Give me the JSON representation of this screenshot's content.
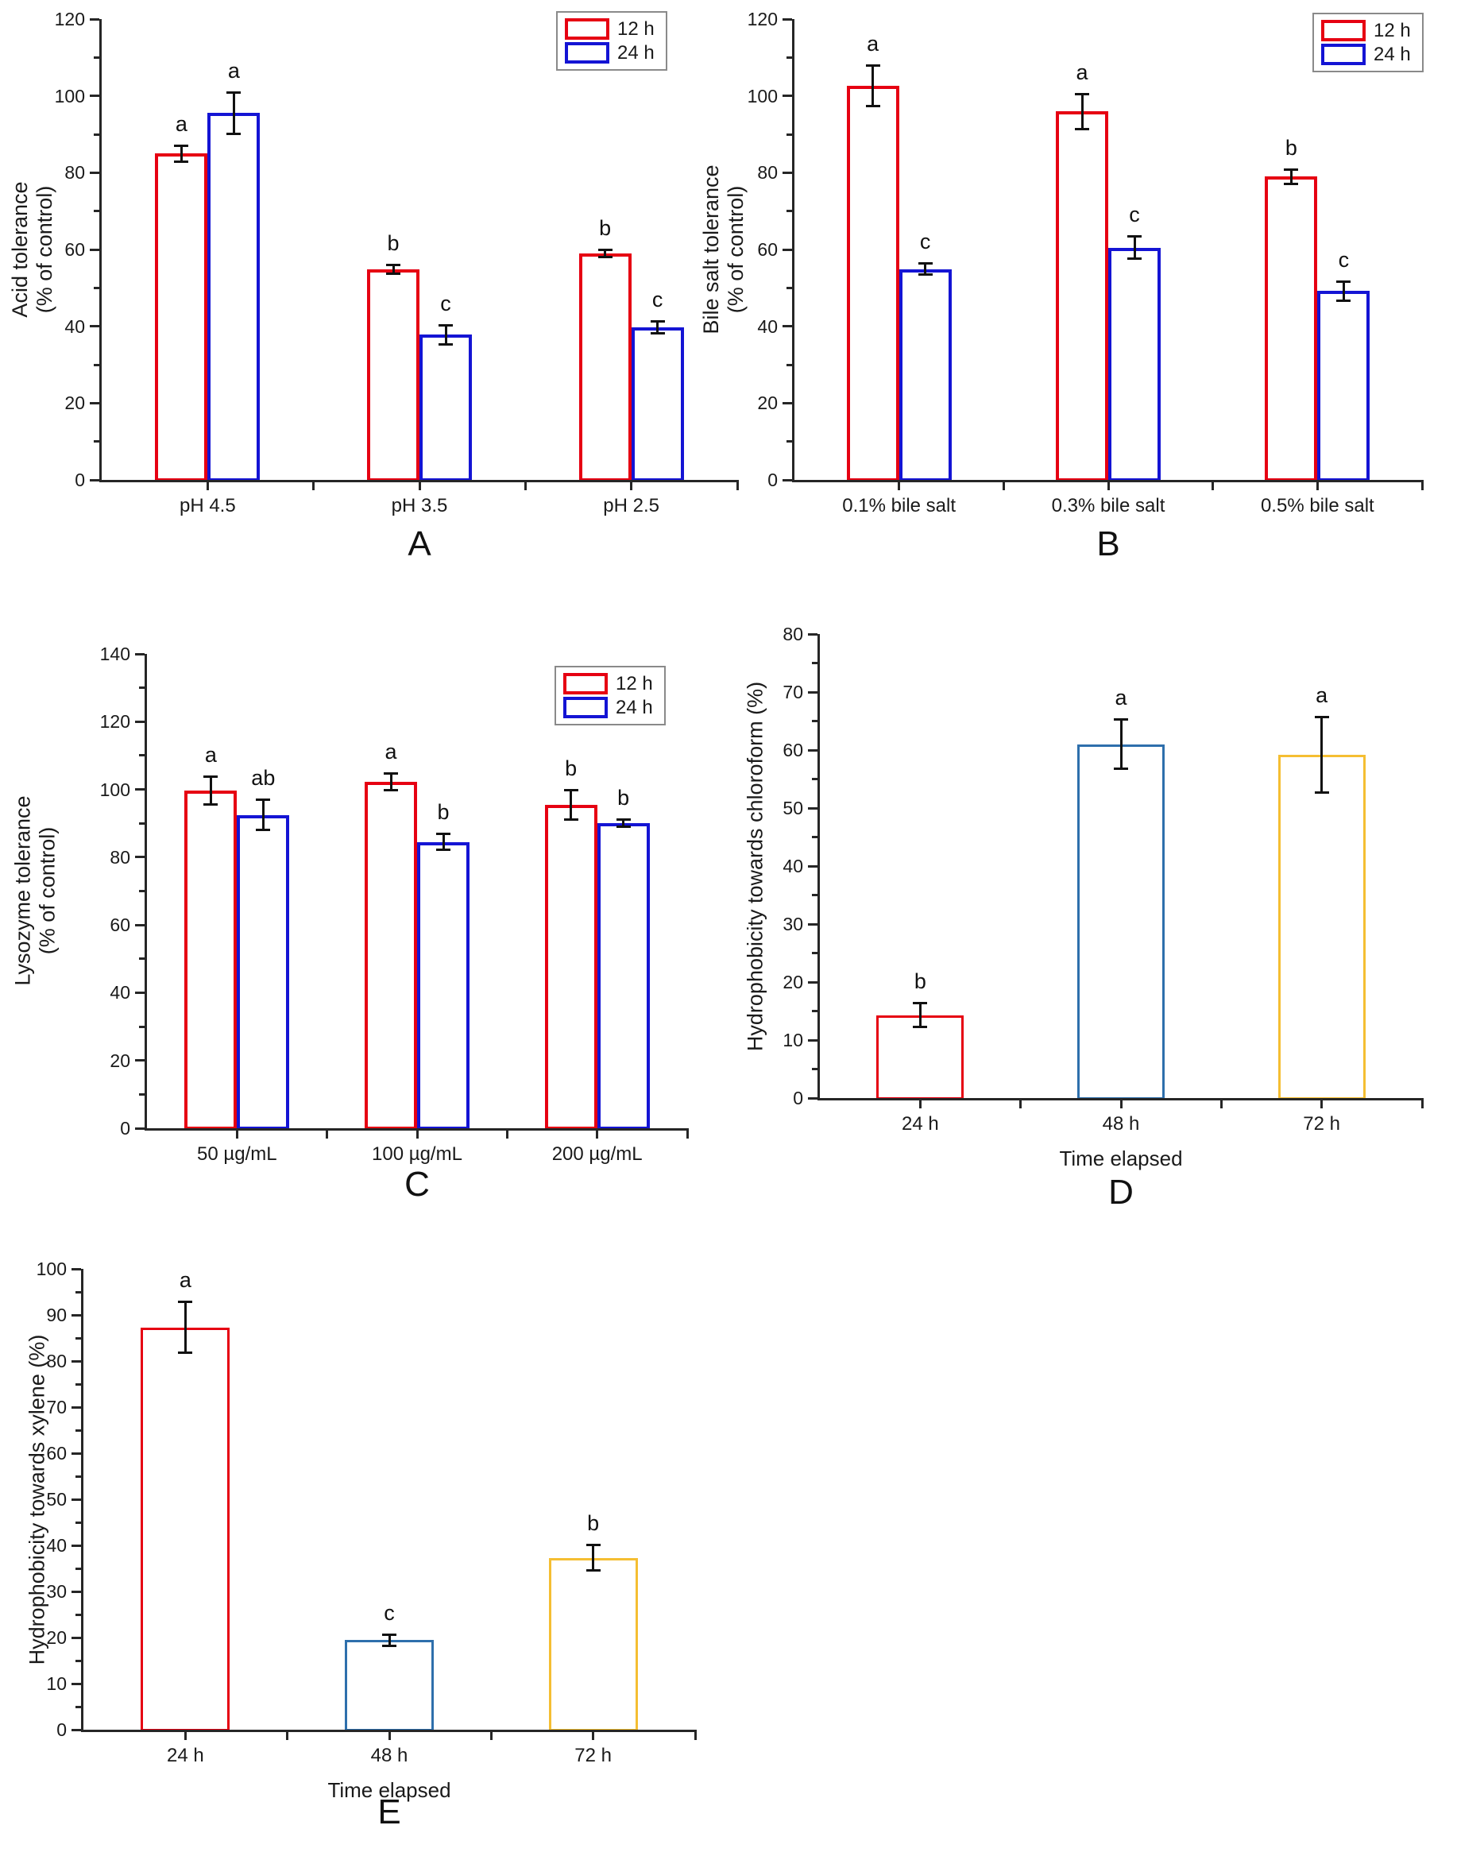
{
  "figure": {
    "background": "#ffffff",
    "panel_labels": [
      "A",
      "B",
      "C",
      "D",
      "E"
    ]
  },
  "palette": {
    "red": "#e60012",
    "blue": "#1414d4",
    "steel_blue": "#2e6fac",
    "gold": "#f5be32",
    "axis": "#262626",
    "error_bar": "#111111"
  },
  "chart_data": [
    {
      "id": "A",
      "type": "bar",
      "panel_label": "A",
      "ylabel": [
        "Acid tolerance",
        "(% of control)"
      ],
      "xlabel": "",
      "ylim": [
        0,
        120
      ],
      "ytick_step": 20,
      "yminor_step": 10,
      "grid": false,
      "legend_position": "top-right",
      "categories": [
        "pH 4.5",
        "pH 3.5",
        "pH 2.5"
      ],
      "legend": [
        "12 h",
        "24 h"
      ],
      "series": [
        {
          "name": "12 h",
          "color": "#e60012",
          "values": [
            85.0,
            54.8,
            59.0
          ],
          "errors": [
            2.2,
            1.2,
            1.0
          ],
          "sig_letters": [
            "a",
            "b",
            "b"
          ]
        },
        {
          "name": "24 h",
          "color": "#1414d4",
          "values": [
            95.5,
            37.8,
            39.7
          ],
          "errors": [
            5.5,
            2.6,
            1.6
          ],
          "sig_letters": [
            "a",
            "c",
            "c"
          ]
        }
      ]
    },
    {
      "id": "B",
      "type": "bar",
      "panel_label": "B",
      "ylabel": [
        "Bile salt tolerance",
        "(% of control)"
      ],
      "xlabel": "",
      "ylim": [
        0,
        120
      ],
      "ytick_step": 20,
      "yminor_step": 10,
      "grid": false,
      "legend_position": "top-right",
      "categories": [
        "0.1% bile salt",
        "0.3% bile salt",
        "0.5% bile salt"
      ],
      "legend": [
        "12 h",
        "24 h"
      ],
      "series": [
        {
          "name": "12 h",
          "color": "#e60012",
          "values": [
            102.6,
            95.9,
            79.0
          ],
          "errors": [
            5.4,
            4.6,
            2.0
          ],
          "sig_letters": [
            "a",
            "a",
            "b"
          ]
        },
        {
          "name": "24 h",
          "color": "#1414d4",
          "values": [
            54.9,
            60.5,
            49.2
          ],
          "errors": [
            1.6,
            3.0,
            2.6
          ],
          "sig_letters": [
            "c",
            "c",
            "c"
          ]
        }
      ]
    },
    {
      "id": "C",
      "type": "bar",
      "panel_label": "C",
      "ylabel": [
        "Lysozyme tolerance",
        "(% of control)"
      ],
      "xlabel": "",
      "ylim": [
        0,
        140
      ],
      "ytick_step": 20,
      "yminor_step": 10,
      "grid": false,
      "legend_position": "top-right",
      "categories": [
        "50 µg/mL",
        "100 µg/mL",
        "200 µg/mL"
      ],
      "legend": [
        "12 h",
        "24 h"
      ],
      "series": [
        {
          "name": "12 h",
          "color": "#e60012",
          "values": [
            99.6,
            102.2,
            95.5
          ],
          "errors": [
            4.2,
            2.6,
            4.4
          ],
          "sig_letters": [
            "a",
            "a",
            "b"
          ]
        },
        {
          "name": "24 h",
          "color": "#1414d4",
          "values": [
            92.5,
            84.5,
            90.0
          ],
          "errors": [
            4.6,
            2.4,
            1.2
          ],
          "sig_letters": [
            "ab",
            "b",
            "b"
          ]
        }
      ]
    },
    {
      "id": "D",
      "type": "bar",
      "panel_label": "D",
      "ylabel": [
        "Hydrophobicity towards chloroform  (%)"
      ],
      "xlabel": "Time elapsed",
      "ylim": [
        0,
        80
      ],
      "ytick_step": 10,
      "yminor_step": 5,
      "grid": false,
      "legend_position": null,
      "categories": [
        "24 h",
        "48 h",
        "72 h"
      ],
      "legend": null,
      "series": [
        {
          "name": "",
          "colors": [
            "#e60012",
            "#2e6fac",
            "#f5be32"
          ],
          "values": [
            14.3,
            61.0,
            59.2
          ],
          "errors": [
            2.1,
            4.3,
            6.6
          ],
          "sig_letters": [
            "b",
            "a",
            "a"
          ]
        }
      ]
    },
    {
      "id": "E",
      "type": "bar",
      "panel_label": "E",
      "ylabel": [
        "Hydrophobicity towards xylene  (%)"
      ],
      "xlabel": "Time elapsed",
      "ylim": [
        0,
        100
      ],
      "ytick_step": 10,
      "yminor_step": 5,
      "grid": false,
      "legend_position": null,
      "categories": [
        "24 h",
        "48 h",
        "72 h"
      ],
      "legend": null,
      "series": [
        {
          "name": "",
          "colors": [
            "#e60012",
            "#2e6fac",
            "#f5be32"
          ],
          "values": [
            87.3,
            19.4,
            37.3
          ],
          "errors": [
            5.6,
            1.3,
            2.8
          ],
          "sig_letters": [
            "a",
            "c",
            "b"
          ]
        }
      ]
    }
  ]
}
